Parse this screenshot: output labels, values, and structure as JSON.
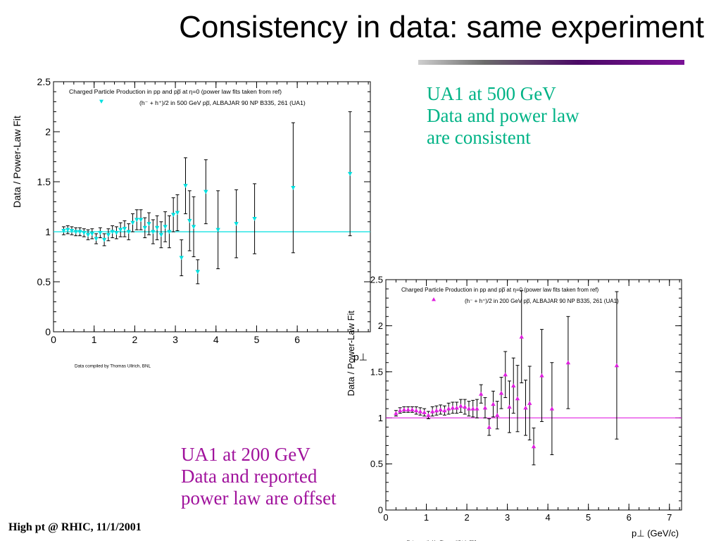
{
  "slide": {
    "title": "Consistency in data: same experiment",
    "footer": "High pt @ RHIC, 11/1/2001",
    "note_top": [
      "UA1 at 500 GeV",
      "Data and power law",
      "are consistent"
    ],
    "note_bottom": [
      "UA1 at 200 GeV",
      "Data and reported",
      "power law are offset"
    ]
  },
  "chart_data": [
    {
      "type": "scatter",
      "title": "Charged Particle Production in pp and pp̅ at η=0  (power law fits taken from ref)",
      "legend": "(h⁻ + h⁺)/2 in 500 GeV pp̅, ALBAJAR 90  NP B335, 261 (UA1)",
      "ylabel": "Data / Power-Law Fit",
      "xlabel": "p⊥",
      "xlim": [
        0,
        7.8
      ],
      "ylim": [
        0,
        2.5
      ],
      "xticks": [
        0,
        1,
        2,
        3,
        4,
        5,
        6
      ],
      "yticks": [
        0,
        0.5,
        1,
        1.5,
        2,
        2.5
      ],
      "ytick_labels": [
        "0",
        "0.5",
        "1",
        "1.5",
        "2",
        "2.5"
      ],
      "reference_line": 1,
      "credit": "Data compiled by Thomas Ullrich, BNL",
      "color": "#00e0e0",
      "marker": "triangle-down",
      "series": [
        {
          "x": [
            0.25,
            0.35,
            0.45,
            0.55,
            0.65,
            0.75,
            0.85,
            0.95,
            1.05,
            1.15,
            1.25,
            1.35,
            1.45,
            1.55,
            1.65,
            1.75,
            1.85,
            1.95,
            2.05,
            2.15,
            2.25,
            2.35,
            2.45,
            2.55,
            2.65,
            2.75,
            2.85,
            2.95,
            3.05,
            3.15,
            3.25,
            3.35,
            3.45,
            3.55,
            3.75,
            4.05,
            4.5,
            4.95,
            5.9,
            7.3
          ],
          "y": [
            1.01,
            1.02,
            1.01,
            1.0,
            1.0,
            0.99,
            0.97,
            0.98,
            0.93,
            0.99,
            0.92,
            0.97,
            1.0,
            0.99,
            1.02,
            1.03,
            1.0,
            1.09,
            1.12,
            1.12,
            1.04,
            1.08,
            1.0,
            1.04,
            0.97,
            1.05,
            1.0,
            1.17,
            1.19,
            0.74,
            1.46,
            1.11,
            1.05,
            0.6,
            1.4,
            1.02,
            1.08,
            1.13,
            1.44,
            1.58
          ],
          "err": [
            0.04,
            0.04,
            0.04,
            0.04,
            0.04,
            0.04,
            0.05,
            0.05,
            0.05,
            0.05,
            0.06,
            0.06,
            0.06,
            0.06,
            0.07,
            0.08,
            0.08,
            0.09,
            0.1,
            0.1,
            0.1,
            0.11,
            0.12,
            0.12,
            0.13,
            0.15,
            0.16,
            0.17,
            0.18,
            0.18,
            0.28,
            0.3,
            0.3,
            0.12,
            0.32,
            0.39,
            0.34,
            0.35,
            0.65,
            0.62
          ]
        }
      ]
    },
    {
      "type": "scatter",
      "title": "Charged Particle Production in pp and pp̅ at η=0  (power law fits taken from ref)",
      "legend": "(h⁻ + h⁺)/2 in 200 GeV pp̅, ALBAJAR 90  NP B335, 261 (UA1)",
      "ylabel": "Data / Power-Law Fit",
      "xlabel": "p⊥  (GeV/c)",
      "xlim": [
        0,
        7.3
      ],
      "ylim": [
        0,
        2.5
      ],
      "xticks": [
        0,
        1,
        2,
        3,
        4,
        5,
        6,
        7
      ],
      "yticks": [
        0,
        0.5,
        1,
        1.5,
        2,
        2.5
      ],
      "ytick_labels": [
        "0",
        "0.5",
        "1",
        "1.5",
        "2",
        "2.5"
      ],
      "reference_line": 1,
      "credit": "Data compiled by Thomas Ullrich, BNL",
      "color": "#e020e0",
      "marker": "triangle-up",
      "series": [
        {
          "x": [
            0.25,
            0.35,
            0.45,
            0.55,
            0.65,
            0.75,
            0.85,
            0.95,
            1.05,
            1.15,
            1.25,
            1.35,
            1.45,
            1.55,
            1.65,
            1.75,
            1.85,
            1.95,
            2.05,
            2.15,
            2.25,
            2.35,
            2.45,
            2.55,
            2.65,
            2.75,
            2.85,
            2.95,
            3.05,
            3.15,
            3.25,
            3.35,
            3.45,
            3.55,
            3.65,
            3.85,
            4.1,
            4.5,
            5.7
          ],
          "y": [
            1.05,
            1.08,
            1.09,
            1.09,
            1.09,
            1.08,
            1.07,
            1.06,
            1.03,
            1.07,
            1.08,
            1.09,
            1.08,
            1.1,
            1.11,
            1.11,
            1.13,
            1.12,
            1.1,
            1.1,
            1.1,
            1.26,
            1.11,
            0.9,
            1.15,
            1.03,
            1.27,
            1.47,
            1.12,
            1.35,
            1.21,
            1.88,
            1.11,
            1.16,
            0.69,
            1.46,
            1.1,
            1.6,
            1.57
          ],
          "err": [
            0.03,
            0.03,
            0.03,
            0.03,
            0.03,
            0.04,
            0.04,
            0.04,
            0.04,
            0.05,
            0.05,
            0.05,
            0.05,
            0.06,
            0.06,
            0.06,
            0.07,
            0.08,
            0.08,
            0.09,
            0.1,
            0.1,
            0.11,
            0.09,
            0.14,
            0.15,
            0.17,
            0.25,
            0.28,
            0.3,
            0.36,
            0.5,
            0.3,
            0.4,
            0.2,
            0.5,
            0.5,
            0.5,
            0.8
          ]
        }
      ]
    }
  ]
}
